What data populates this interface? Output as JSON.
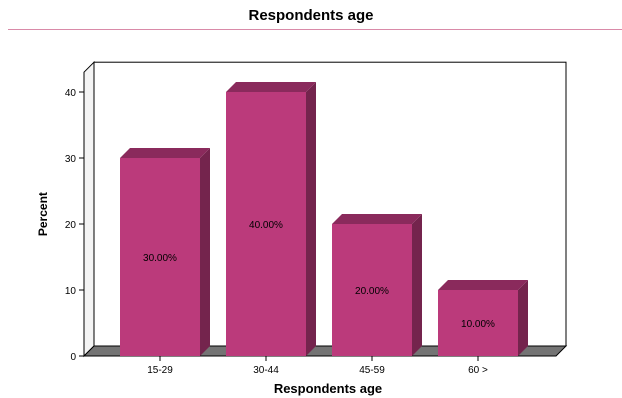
{
  "header": {
    "title": "Respondents age"
  },
  "chart_data": {
    "type": "bar",
    "title": "Respondents age",
    "xlabel": "Respondents age",
    "ylabel": "Percent",
    "categories": [
      "15-29",
      "30-44",
      "45-59",
      "60 >"
    ],
    "values": [
      30,
      40,
      20,
      10
    ],
    "data_labels": [
      "30.00%",
      "40.00%",
      "20.00%",
      "10.00%"
    ],
    "yticks": [
      "0",
      "10",
      "20",
      "30",
      "40"
    ],
    "ylim": [
      0,
      43
    ],
    "grid": false,
    "legend": "none",
    "style": "3d",
    "colors": {
      "bar_front": "#bb3a7b",
      "bar_side": "#74244d",
      "bar_top": "#8a2a5c",
      "wall": "#ffffff",
      "floor": "#747474",
      "axis": "#000000"
    }
  }
}
